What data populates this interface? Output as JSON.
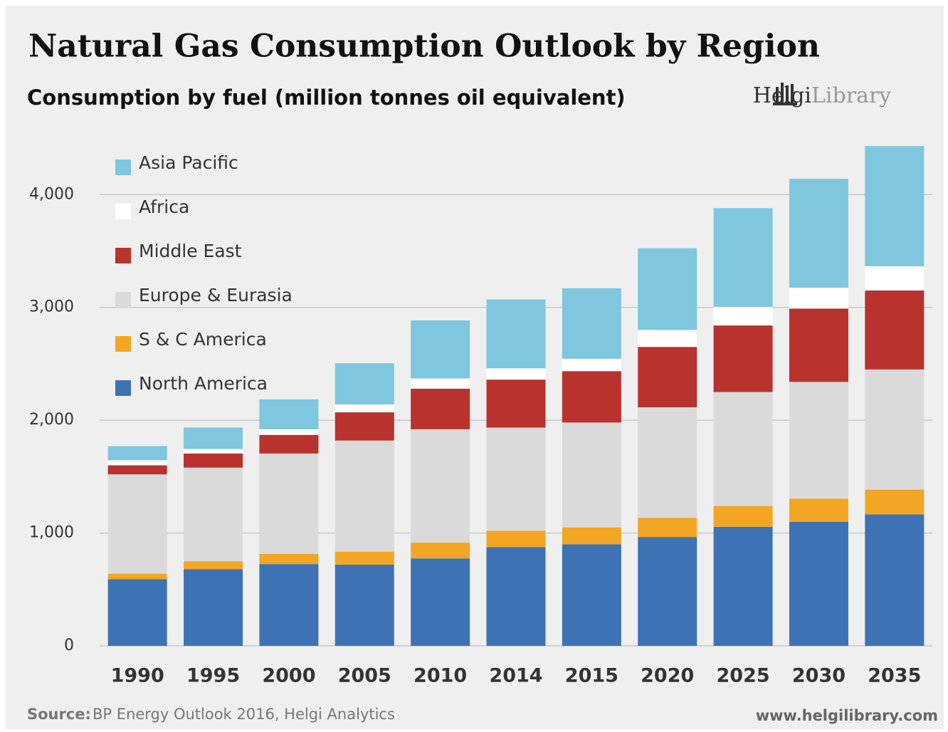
{
  "chart_data": {
    "type": "stacked_bar",
    "title": "Natural Gas Consumption Outlook by Region",
    "subtitle": "Consumption by fuel (million tonnes oil equivalent)",
    "logo": {
      "bold": "Helgi",
      "light": "Library"
    },
    "source_label": "Source:",
    "source": "BP Energy Outlook 2016, Helgi Analytics",
    "website": "www.helgilibrary.com",
    "categories": [
      "1990",
      "1995",
      "2000",
      "2005",
      "2010",
      "2014",
      "2015",
      "2020",
      "2025",
      "2030",
      "2035"
    ],
    "series": [
      {
        "name": "North America",
        "color": "#3d72b4",
        "values": [
          590,
          680,
          725,
          720,
          775,
          875,
          900,
          965,
          1055,
          1100,
          1165
        ]
      },
      {
        "name": "S & C America",
        "color": "#f2a623",
        "values": [
          50,
          70,
          90,
          115,
          140,
          145,
          150,
          170,
          185,
          205,
          220
        ]
      },
      {
        "name": "Europe & Eurasia",
        "color": "#dadada",
        "values": [
          880,
          830,
          890,
          985,
          1005,
          915,
          930,
          980,
          1010,
          1035,
          1065
        ]
      },
      {
        "name": "Middle East",
        "color": "#b8322e",
        "values": [
          80,
          125,
          165,
          250,
          360,
          425,
          455,
          535,
          590,
          650,
          700
        ]
      },
      {
        "name": "Africa",
        "color": "#ffffff",
        "values": [
          45,
          40,
          50,
          70,
          90,
          100,
          110,
          150,
          165,
          185,
          215
        ]
      },
      {
        "name": "Asia Pacific",
        "color": "#7fc6df",
        "values": [
          125,
          190,
          265,
          365,
          515,
          610,
          625,
          725,
          875,
          965,
          1065
        ]
      }
    ],
    "ylim": [
      0,
      4450
    ],
    "yticks": [
      0,
      {
        "value": 1000,
        "label": "1,000"
      },
      {
        "value": 2000,
        "label": "2,000"
      },
      {
        "value": 3000,
        "label": "3,000"
      },
      {
        "value": 4000,
        "label": "4,000"
      }
    ],
    "grid": true,
    "legend": "top-left"
  }
}
